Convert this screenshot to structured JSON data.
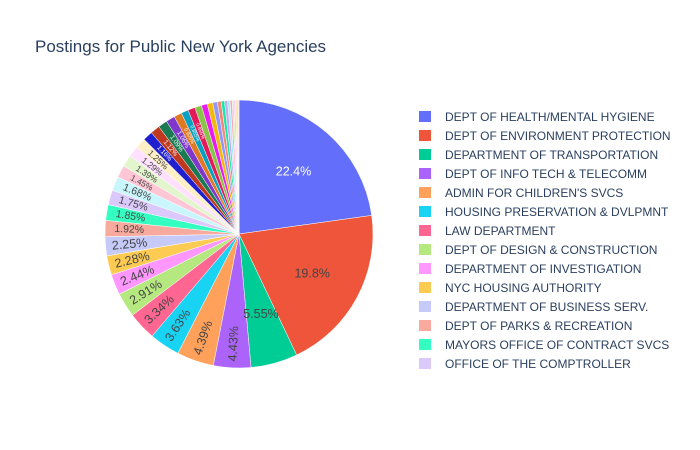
{
  "chart_data": {
    "type": "pie",
    "title": "Postings for Public New York Agencies",
    "legend_position": "right",
    "slices": [
      {
        "name": "DEPT OF HEALTH/MENTAL HYGIENE",
        "percent": 22.4,
        "label": "22.4%",
        "color": "#636efa"
      },
      {
        "name": "DEPT OF ENVIRONMENT PROTECTION",
        "percent": 19.8,
        "label": "19.8%",
        "color": "#ef553b"
      },
      {
        "name": "DEPARTMENT OF TRANSPORTATION",
        "percent": 5.55,
        "label": "5.55%",
        "color": "#00cc96"
      },
      {
        "name": "DEPT OF INFO TECH & TELECOMM",
        "percent": 4.43,
        "label": "4.43%",
        "color": "#ab63fa"
      },
      {
        "name": "ADMIN FOR CHILDREN'S SVCS",
        "percent": 4.39,
        "label": "4.39%",
        "color": "#ffa15a"
      },
      {
        "name": "HOUSING PRESERVATION & DVLPMNT",
        "percent": 3.63,
        "label": "3.63%",
        "color": "#19d3f3"
      },
      {
        "name": "LAW DEPARTMENT",
        "percent": 3.34,
        "label": "3.34%",
        "color": "#ff6692"
      },
      {
        "name": "DEPT OF DESIGN & CONSTRUCTION",
        "percent": 2.91,
        "label": "2.91%",
        "color": "#b6e880"
      },
      {
        "name": "DEPARTMENT OF INVESTIGATION",
        "percent": 2.44,
        "label": "2.44%",
        "color": "#ff97ff"
      },
      {
        "name": "NYC HOUSING AUTHORITY",
        "percent": 2.28,
        "label": "2.28%",
        "color": "#fecb52"
      },
      {
        "name": "DEPARTMENT OF BUSINESS SERV.",
        "percent": 2.25,
        "label": "2.25%",
        "color": "#c6caf8"
      },
      {
        "name": "DEPT OF PARKS & RECREATION",
        "percent": 1.92,
        "label": "1.92%",
        "color": "#f7aa9d"
      },
      {
        "name": "MAYORS OFFICE OF CONTRACT SVCS",
        "percent": 1.85,
        "label": "1.85%",
        "color": "#33ffc0"
      },
      {
        "name": "OFFICE OF THE COMPTROLLER",
        "percent": 1.75,
        "label": "1.75%",
        "color": "#dcc9fb"
      },
      {
        "percent": 1.68,
        "label": "1.68%",
        "color": "#c8f6fc"
      },
      {
        "percent": 1.45,
        "label": "1.45%",
        "color": "#ffc7d5"
      },
      {
        "percent": 1.39,
        "label": "1.39%",
        "color": "#e2f5cc"
      },
      {
        "percent": 1.29,
        "label": "1.29%",
        "color": "#ffe0ff"
      },
      {
        "percent": 1.25,
        "label": "1.25%",
        "color": "#ffefc6"
      },
      {
        "percent": 1.16,
        "label": "1.16%",
        "color": "#1f1fd0"
      },
      {
        "percent": 1.12,
        "label": "1.12%",
        "color": "#c0391f"
      },
      {
        "percent": 1.09,
        "label": "1.09%",
        "color": "#1a7a52"
      },
      {
        "percent": 1.06,
        "label": "1.06%",
        "color": "#7f38c9"
      },
      {
        "percent": 0.925,
        "label": "0.925%",
        "color": "#e07a22"
      },
      {
        "percent": 0.855,
        "label": "0.855%",
        "color": "#0aa0c0"
      },
      {
        "percent": 0.855,
        "label": "0.855%",
        "color": "#e3195a"
      },
      {
        "percent": 0.8,
        "label": "",
        "color": "#8bc34a"
      },
      {
        "percent": 0.7,
        "label": "",
        "color": "#e81cef"
      },
      {
        "percent": 0.65,
        "label": "",
        "color": "#f2b90d"
      },
      {
        "percent": 0.55,
        "label": "",
        "color": "#9297f5"
      },
      {
        "percent": 0.45,
        "label": "",
        "color": "#f08a78"
      },
      {
        "percent": 0.4,
        "label": "",
        "color": "#1ae6a8"
      },
      {
        "percent": 0.35,
        "label": "",
        "color": "#c4a8f5"
      },
      {
        "percent": 0.3,
        "label": "",
        "color": "#a8ecf7"
      },
      {
        "percent": 0.25,
        "label": "",
        "color": "#f7a8bc"
      },
      {
        "percent": 0.2,
        "label": "",
        "color": "#cfe8b0"
      },
      {
        "percent": 0.2,
        "label": "",
        "color": "#f5c4f5"
      },
      {
        "percent": 0.15,
        "label": "",
        "color": "#fadc8c"
      },
      {
        "percent": 0.15,
        "label": "",
        "color": "#d0d3f7"
      },
      {
        "percent": 0.1,
        "label": "",
        "color": "#f5c0b5"
      }
    ]
  }
}
